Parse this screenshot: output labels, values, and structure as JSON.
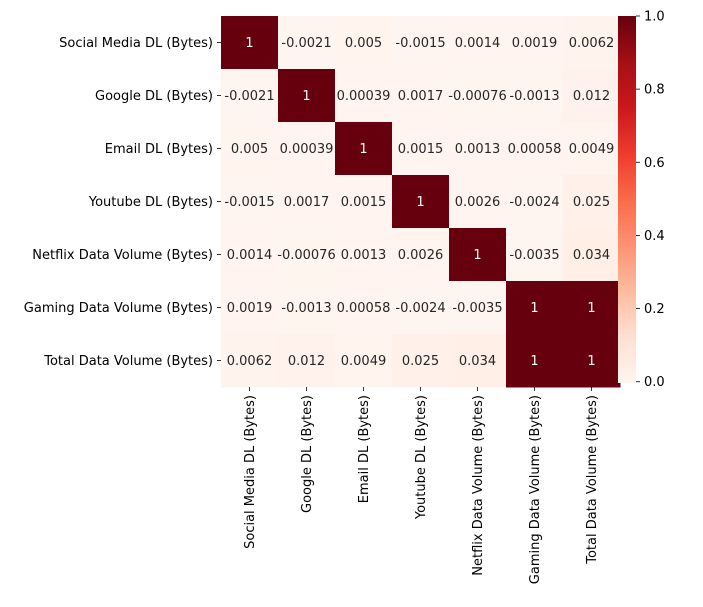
{
  "chart_data": {
    "type": "heatmap",
    "title": "",
    "xlabel": "",
    "ylabel": "",
    "rows": [
      "Social Media DL (Bytes)",
      "Google DL (Bytes)",
      "Email DL (Bytes)",
      "Youtube DL (Bytes)",
      "Netflix Data Volume (Bytes)",
      "Gaming Data Volume (Bytes)",
      "Total Data Volume (Bytes)"
    ],
    "columns": [
      "Social Media DL (Bytes)",
      "Google DL (Bytes)",
      "Email DL (Bytes)",
      "Youtube DL (Bytes)",
      "Netflix Data Volume (Bytes)",
      "Gaming Data Volume (Bytes)",
      "Total Data Volume (Bytes)"
    ],
    "values": [
      [
        1,
        -0.0021,
        0.005,
        -0.0015,
        0.0014,
        0.0019,
        0.0062
      ],
      [
        -0.0021,
        1,
        0.00039,
        0.0017,
        -0.00076,
        -0.0013,
        0.012
      ],
      [
        0.005,
        0.00039,
        1,
        0.0015,
        0.0013,
        0.00058,
        0.0049
      ],
      [
        -0.0015,
        0.0017,
        0.0015,
        1,
        0.0026,
        -0.0024,
        0.025
      ],
      [
        0.0014,
        -0.00076,
        0.0013,
        0.0026,
        1,
        -0.0035,
        0.034
      ],
      [
        0.0019,
        -0.0013,
        0.00058,
        -0.0024,
        -0.0035,
        1,
        1
      ],
      [
        0.0062,
        0.012,
        0.0049,
        0.025,
        0.034,
        1,
        1
      ]
    ],
    "labels": [
      [
        "1",
        "-0.0021",
        "0.005",
        "-0.0015",
        "0.0014",
        "0.0019",
        "0.0062"
      ],
      [
        "-0.0021",
        "1",
        "0.00039",
        "0.0017",
        "-0.00076",
        "-0.0013",
        "0.012"
      ],
      [
        "0.005",
        "0.00039",
        "1",
        "0.0015",
        "0.0013",
        "0.00058",
        "0.0049"
      ],
      [
        "-0.0015",
        "0.0017",
        "0.0015",
        "1",
        "0.0026",
        "-0.0024",
        "0.025"
      ],
      [
        "0.0014",
        "-0.00076",
        "0.0013",
        "0.0026",
        "1",
        "-0.0035",
        "0.034"
      ],
      [
        "0.0019",
        "-0.0013",
        "0.00058",
        "-0.0024",
        "-0.0035",
        "1",
        "1"
      ],
      [
        "0.0062",
        "0.012",
        "0.0049",
        "0.025",
        "0.034",
        "1",
        "1"
      ]
    ],
    "colormap": "Reds",
    "vmin": -0.0035,
    "vmax": 1,
    "colorbar": {
      "ticks": [
        0,
        0.2,
        0.4,
        0.6,
        0.8,
        1
      ],
      "tick_labels": [
        "0.0",
        "0.2",
        "0.4",
        "0.6",
        "0.8",
        "1.0"
      ]
    },
    "legend": "none"
  }
}
